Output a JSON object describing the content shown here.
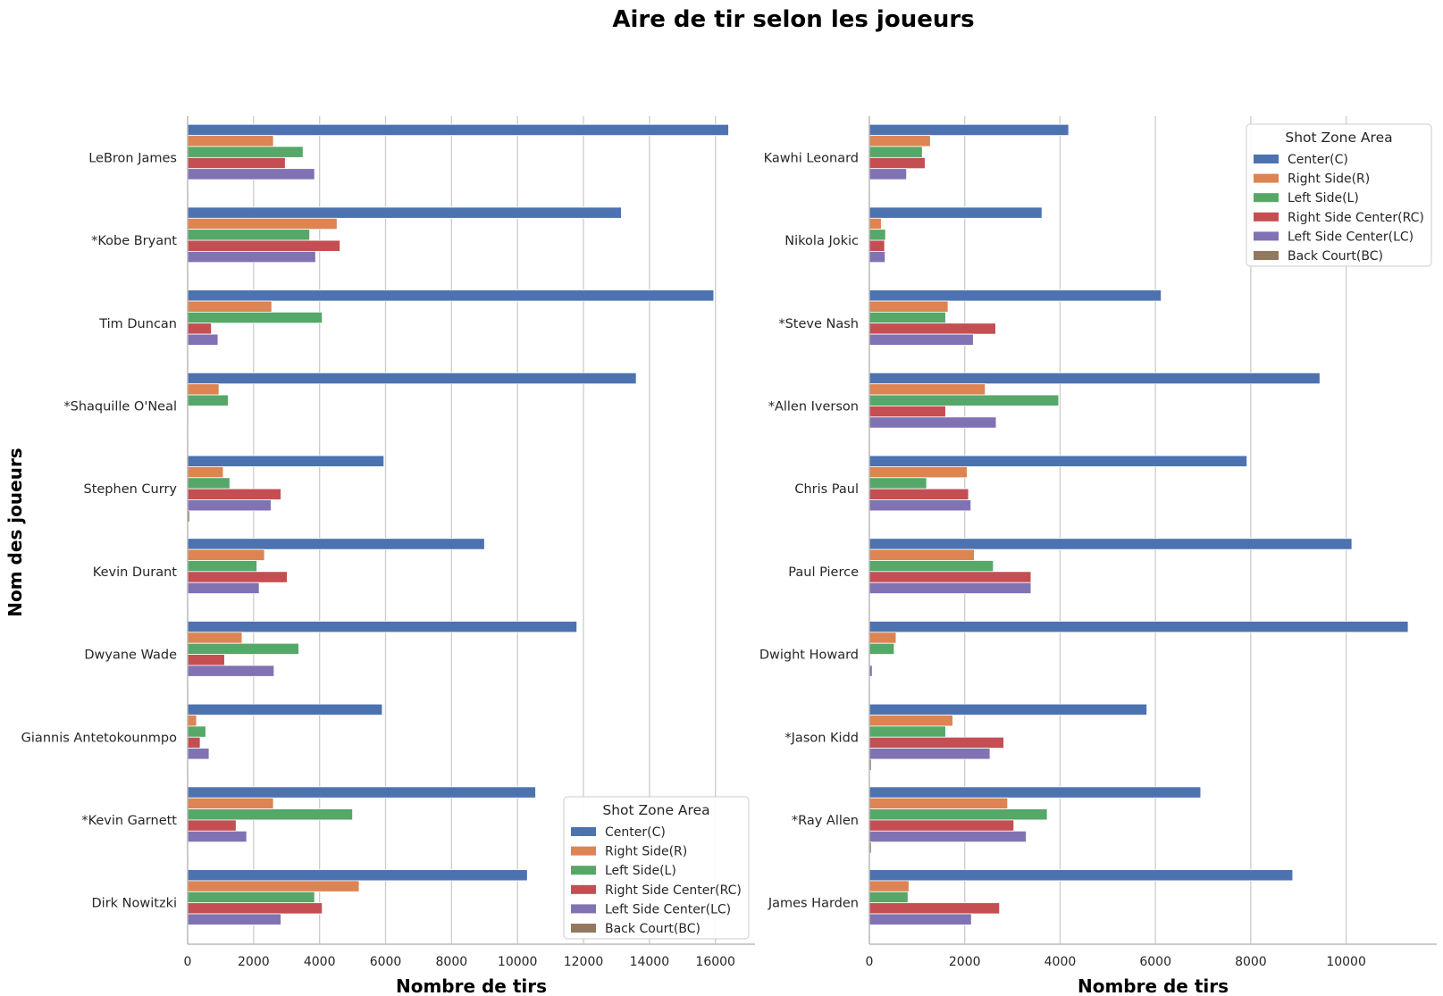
{
  "title": "Aire de tir selon les joueurs",
  "ylabel": "Nom des joueurs",
  "colors": {
    "Center(C)": "#4c72b0",
    "Right Side(R)": "#dd8452",
    "Left Side(L)": "#55a868",
    "Right Side Center(RC)": "#c44e52",
    "Left Side Center(LC)": "#8172b3",
    "Back Court(BC)": "#937860"
  },
  "legend": {
    "title": "Shot Zone Area",
    "items": [
      "Center(C)",
      "Right Side(R)",
      "Left Side(L)",
      "Right Side Center(RC)",
      "Left Side Center(LC)",
      "Back Court(BC)"
    ]
  },
  "chart_data": [
    {
      "type": "bar",
      "orientation": "horizontal",
      "xlabel": "Nombre de tirs",
      "xlim": [
        0,
        17200
      ],
      "xticks": [
        0,
        2000,
        4000,
        6000,
        8000,
        10000,
        12000,
        14000,
        16000
      ],
      "legend_position": "lower right",
      "categories": [
        "LeBron James",
        "*Kobe Bryant",
        "Tim Duncan",
        "*Shaquille O'Neal",
        "Stephen Curry",
        "Kevin Durant",
        "Dwyane Wade",
        "Giannis Antetokounmpo",
        "*Kevin Garnett",
        "Dirk Nowitzki"
      ],
      "series": [
        {
          "name": "Center(C)",
          "values": [
            16400,
            13150,
            15950,
            13600,
            5950,
            9000,
            11800,
            5900,
            10550,
            10300
          ]
        },
        {
          "name": "Right Side(R)",
          "values": [
            2600,
            4530,
            2550,
            950,
            1080,
            2330,
            1650,
            270,
            2600,
            5200
          ]
        },
        {
          "name": "Left Side(L)",
          "values": [
            3500,
            3700,
            4080,
            1230,
            1280,
            2100,
            3370,
            550,
            5000,
            3850
          ]
        },
        {
          "name": "Right Side Center(RC)",
          "values": [
            2960,
            4620,
            720,
            0,
            2830,
            3020,
            1120,
            380,
            1470,
            4080
          ]
        },
        {
          "name": "Left Side Center(LC)",
          "values": [
            3850,
            3880,
            920,
            0,
            2530,
            2170,
            2620,
            650,
            1790,
            2830
          ]
        },
        {
          "name": "Back Court(BC)",
          "values": [
            20,
            10,
            10,
            10,
            60,
            20,
            10,
            10,
            10,
            10
          ]
        }
      ]
    },
    {
      "type": "bar",
      "orientation": "horizontal",
      "xlabel": "Nombre de tirs",
      "xlim": [
        0,
        11900
      ],
      "xticks": [
        0,
        2000,
        4000,
        6000,
        8000,
        10000
      ],
      "legend_position": "upper right",
      "categories": [
        "Kawhi Leonard",
        "Nikola Jokic",
        "*Steve Nash",
        "*Allen Iverson",
        "Chris Paul",
        "Paul Pierce",
        "Dwight Howard",
        "*Jason Kidd",
        "*Ray Allen",
        "James Harden"
      ],
      "series": [
        {
          "name": "Center(C)",
          "values": [
            4180,
            3620,
            6120,
            9450,
            7920,
            10120,
            11300,
            5820,
            6950,
            8880
          ]
        },
        {
          "name": "Right Side(R)",
          "values": [
            1280,
            250,
            1650,
            2430,
            2050,
            2200,
            560,
            1750,
            2900,
            830
          ]
        },
        {
          "name": "Left Side(L)",
          "values": [
            1110,
            340,
            1600,
            3970,
            1200,
            2600,
            520,
            1600,
            3730,
            810
          ]
        },
        {
          "name": "Right Side Center(RC)",
          "values": [
            1170,
            320,
            2650,
            1600,
            2080,
            3390,
            0,
            2820,
            3030,
            2730
          ]
        },
        {
          "name": "Left Side Center(LC)",
          "values": [
            780,
            330,
            2180,
            2660,
            2130,
            3390,
            60,
            2530,
            3290,
            2140
          ]
        },
        {
          "name": "Back Court(BC)",
          "values": [
            10,
            10,
            10,
            10,
            10,
            10,
            10,
            40,
            40,
            10
          ]
        }
      ]
    }
  ]
}
